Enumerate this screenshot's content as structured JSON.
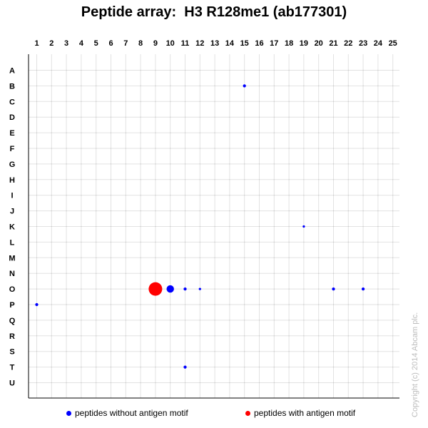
{
  "chart_data": {
    "type": "scatter",
    "title": "Peptide array:  H3 R128me1 (ab177301)",
    "columns": [
      "1",
      "2",
      "3",
      "4",
      "5",
      "6",
      "7",
      "8",
      "9",
      "10",
      "11",
      "12",
      "13",
      "14",
      "15",
      "16",
      "17",
      "18",
      "19",
      "20",
      "21",
      "22",
      "23",
      "24",
      "25"
    ],
    "rows": [
      "A",
      "B",
      "C",
      "D",
      "E",
      "F",
      "G",
      "H",
      "I",
      "J",
      "K",
      "L",
      "M",
      "N",
      "O",
      "P",
      "Q",
      "R",
      "S",
      "T",
      "U"
    ],
    "grid": true,
    "legend_position": "bottom",
    "series": [
      {
        "name": "peptides without antigen motif",
        "color": "#0000ff",
        "points": [
          {
            "col": 15,
            "row": "B",
            "value": 0.05
          },
          {
            "col": 19,
            "row": "K",
            "value": 0.03
          },
          {
            "col": 10,
            "row": "O",
            "value": 0.3
          },
          {
            "col": 11,
            "row": "O",
            "value": 0.05
          },
          {
            "col": 12,
            "row": "O",
            "value": 0.03
          },
          {
            "col": 21,
            "row": "O",
            "value": 0.05
          },
          {
            "col": 23,
            "row": "O",
            "value": 0.05
          },
          {
            "col": 1,
            "row": "P",
            "value": 0.05
          },
          {
            "col": 11,
            "row": "T",
            "value": 0.05
          }
        ]
      },
      {
        "name": "peptides with antigen motif",
        "color": "#ff0000",
        "points": [
          {
            "col": 9,
            "row": "O",
            "value": 1.0
          }
        ]
      }
    ]
  },
  "copyright": "Copyright (c) 2014 Abcam plc."
}
